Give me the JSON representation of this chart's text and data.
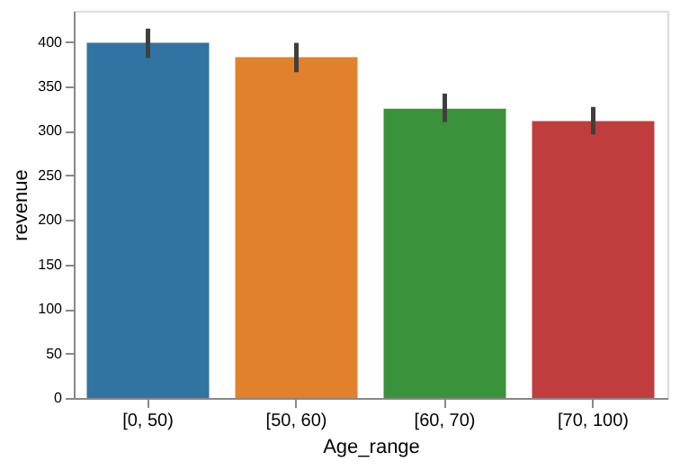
{
  "chart_data": {
    "type": "bar",
    "xlabel": "Age_range",
    "ylabel": "revenue",
    "categories": [
      "[0, 50)",
      "[50, 60)",
      "[60, 70)",
      "[70, 100)"
    ],
    "values": [
      399,
      383,
      325,
      311
    ],
    "colors": [
      "#3274a1",
      "#e1812c",
      "#3a923a",
      "#c03d3e"
    ],
    "errors": [
      [
        382,
        415
      ],
      [
        366,
        399
      ],
      [
        310,
        342
      ],
      [
        296,
        327
      ]
    ],
    "ylim": [
      0,
      435
    ],
    "yticks": [
      0,
      50,
      100,
      150,
      200,
      250,
      300,
      350,
      400
    ],
    "grid": false,
    "legend": false
  }
}
